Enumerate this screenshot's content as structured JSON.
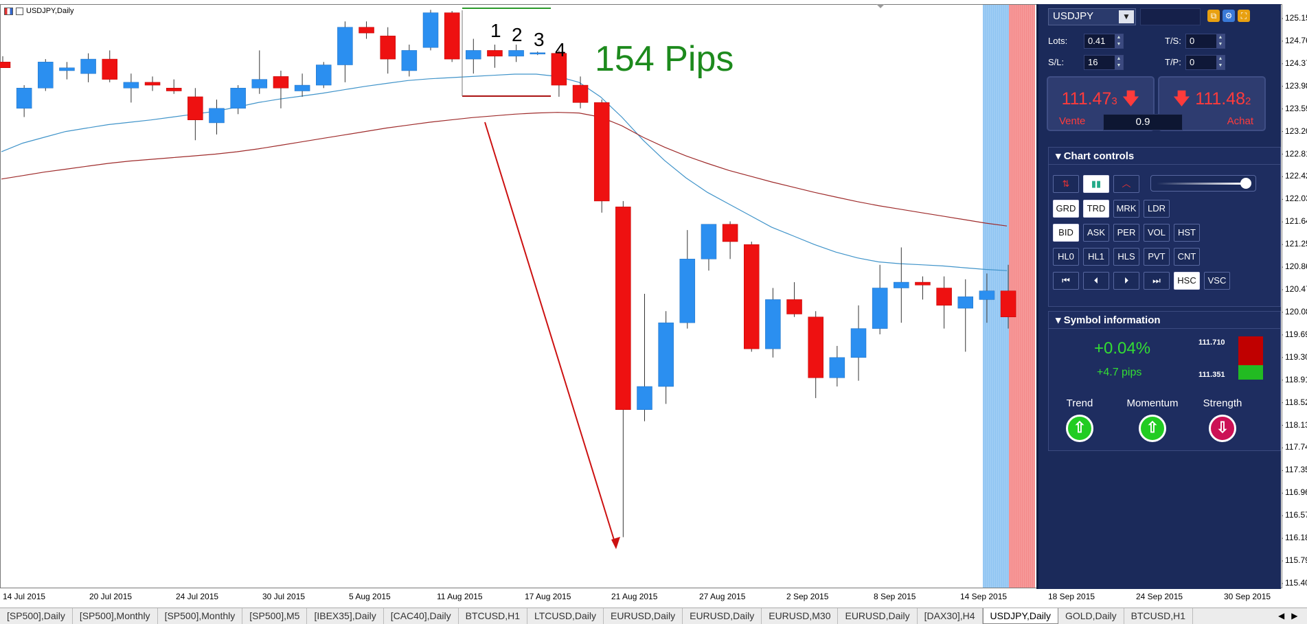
{
  "window": {
    "title": "USDJPY,Daily"
  },
  "price_axis": {
    "labels": [
      "125.150",
      "124.760",
      "124.370",
      "123.980",
      "123.590",
      "123.200",
      "122.810",
      "122.420",
      "122.030",
      "121.640",
      "121.250",
      "120.860",
      "120.470",
      "120.080",
      "119.690",
      "119.300",
      "118.910",
      "118.520",
      "118.130",
      "117.740",
      "117.350",
      "116.960",
      "116.570",
      "116.180",
      "115.790",
      "115.400"
    ],
    "top": 125.15,
    "bottom": 115.4
  },
  "time_axis": {
    "labels": [
      "14 Jul 2015",
      "20 Jul 2015",
      "24 Jul 2015",
      "30 Jul 2015",
      "5 Aug 2015",
      "11 Aug 2015",
      "17 Aug 2015",
      "21 Aug 2015",
      "27 Aug 2015",
      "2 Sep 2015",
      "8 Sep 2015",
      "14 Sep 2015",
      "18 Sep 2015",
      "24 Sep 2015",
      "30 Sep 2015"
    ]
  },
  "chart_data": {
    "type": "candlestick",
    "symbol": "USDJPY",
    "timeframe": "Daily",
    "candles": [
      {
        "o": 124.4,
        "h": 124.5,
        "l": 124.3,
        "c": 124.3
      },
      {
        "o": 123.6,
        "h": 124.0,
        "l": 123.45,
        "c": 123.95
      },
      {
        "o": 123.95,
        "h": 124.45,
        "l": 123.9,
        "c": 124.4
      },
      {
        "o": 124.25,
        "h": 124.4,
        "l": 124.1,
        "c": 124.3
      },
      {
        "o": 124.2,
        "h": 124.55,
        "l": 124.05,
        "c": 124.45
      },
      {
        "o": 124.45,
        "h": 124.6,
        "l": 124.05,
        "c": 124.1
      },
      {
        "o": 123.95,
        "h": 124.2,
        "l": 123.7,
        "c": 124.05
      },
      {
        "o": 124.05,
        "h": 124.15,
        "l": 123.9,
        "c": 124.0
      },
      {
        "o": 123.95,
        "h": 124.1,
        "l": 123.85,
        "c": 123.9
      },
      {
        "o": 123.8,
        "h": 123.95,
        "l": 123.05,
        "c": 123.4
      },
      {
        "o": 123.35,
        "h": 123.75,
        "l": 123.15,
        "c": 123.6
      },
      {
        "o": 123.6,
        "h": 124.0,
        "l": 123.5,
        "c": 123.95
      },
      {
        "o": 123.95,
        "h": 124.6,
        "l": 123.85,
        "c": 124.1
      },
      {
        "o": 124.15,
        "h": 124.25,
        "l": 123.6,
        "c": 123.95
      },
      {
        "o": 123.9,
        "h": 124.2,
        "l": 123.8,
        "c": 124.0
      },
      {
        "o": 124.0,
        "h": 124.4,
        "l": 123.95,
        "c": 124.35
      },
      {
        "o": 124.35,
        "h": 125.1,
        "l": 124.05,
        "c": 125.0
      },
      {
        "o": 125.0,
        "h": 125.1,
        "l": 124.8,
        "c": 124.9
      },
      {
        "o": 124.85,
        "h": 125.0,
        "l": 124.2,
        "c": 124.45
      },
      {
        "o": 124.25,
        "h": 124.7,
        "l": 124.15,
        "c": 124.6
      },
      {
        "o": 124.65,
        "h": 125.3,
        "l": 124.6,
        "c": 125.25
      },
      {
        "o": 125.25,
        "h": 125.28,
        "l": 124.4,
        "c": 124.45
      },
      {
        "o": 124.45,
        "h": 124.8,
        "l": 124.2,
        "c": 124.6
      },
      {
        "o": 124.6,
        "h": 124.7,
        "l": 124.3,
        "c": 124.5
      },
      {
        "o": 124.5,
        "h": 124.7,
        "l": 124.4,
        "c": 124.6
      },
      {
        "o": 124.55,
        "h": 124.58,
        "l": 124.52,
        "c": 124.56
      },
      {
        "o": 124.55,
        "h": 124.6,
        "l": 123.8,
        "c": 124.0
      },
      {
        "o": 124.0,
        "h": 124.15,
        "l": 123.6,
        "c": 123.7
      },
      {
        "o": 123.7,
        "h": 123.75,
        "l": 121.8,
        "c": 122.0
      },
      {
        "o": 121.9,
        "h": 122.0,
        "l": 116.2,
        "c": 118.4
      },
      {
        "o": 118.4,
        "h": 120.4,
        "l": 118.2,
        "c": 118.8
      },
      {
        "o": 118.8,
        "h": 120.1,
        "l": 118.5,
        "c": 119.9
      },
      {
        "o": 119.9,
        "h": 121.5,
        "l": 119.8,
        "c": 121.0
      },
      {
        "o": 121.0,
        "h": 121.6,
        "l": 120.8,
        "c": 121.6
      },
      {
        "o": 121.6,
        "h": 121.65,
        "l": 121.0,
        "c": 121.3
      },
      {
        "o": 121.25,
        "h": 121.3,
        "l": 119.4,
        "c": 119.45
      },
      {
        "o": 119.45,
        "h": 120.5,
        "l": 119.3,
        "c": 120.3
      },
      {
        "o": 120.3,
        "h": 120.6,
        "l": 120.0,
        "c": 120.05
      },
      {
        "o": 120.0,
        "h": 120.1,
        "l": 118.6,
        "c": 118.95
      },
      {
        "o": 118.95,
        "h": 119.5,
        "l": 118.8,
        "c": 119.3
      },
      {
        "o": 119.3,
        "h": 120.2,
        "l": 118.9,
        "c": 119.8
      },
      {
        "o": 119.8,
        "h": 120.9,
        "l": 119.7,
        "c": 120.5
      },
      {
        "o": 120.5,
        "h": 121.2,
        "l": 119.9,
        "c": 120.6
      },
      {
        "o": 120.6,
        "h": 120.7,
        "l": 120.3,
        "c": 120.55
      },
      {
        "o": 120.5,
        "h": 120.7,
        "l": 119.8,
        "c": 120.2
      },
      {
        "o": 120.15,
        "h": 120.65,
        "l": 119.4,
        "c": 120.35
      },
      {
        "o": 120.3,
        "h": 120.75,
        "l": 119.9,
        "c": 120.45
      },
      {
        "o": 120.45,
        "h": 120.9,
        "l": 119.8,
        "c": 120.0
      }
    ],
    "ma_fast": [
      122.85,
      123.0,
      123.1,
      123.2,
      123.26,
      123.32,
      123.36,
      123.4,
      123.45,
      123.5,
      123.55,
      123.62,
      123.7,
      123.76,
      123.81,
      123.86,
      123.92,
      123.98,
      124.03,
      124.08,
      124.11,
      124.13,
      124.15,
      124.17,
      124.19,
      124.19,
      124.15,
      124.05,
      123.8,
      123.45,
      123.05,
      122.7,
      122.4,
      122.15,
      121.95,
      121.75,
      121.55,
      121.4,
      121.25,
      121.12,
      121.02,
      120.95,
      120.92,
      120.9,
      120.88,
      120.85,
      120.82,
      120.8
    ],
    "ma_slow": [
      122.38,
      122.44,
      122.5,
      122.55,
      122.6,
      122.65,
      122.69,
      122.72,
      122.75,
      122.78,
      122.81,
      122.85,
      122.9,
      122.96,
      123.02,
      123.08,
      123.14,
      123.2,
      123.26,
      123.31,
      123.36,
      123.4,
      123.44,
      123.47,
      123.5,
      123.52,
      123.53,
      123.52,
      123.45,
      123.3,
      123.1,
      122.93,
      122.78,
      122.65,
      122.53,
      122.43,
      122.33,
      122.24,
      122.15,
      122.07,
      121.99,
      121.92,
      121.86,
      121.8,
      121.74,
      121.68,
      121.62,
      121.57
    ],
    "annotations": [
      "1",
      "2",
      "3",
      "4",
      "154 Pips"
    ]
  },
  "panel": {
    "symbol": "USDJPY",
    "lots_label": "Lots:",
    "lots_value": "0.41",
    "ts_label": "T/S:",
    "ts_value": "0",
    "sl_label": "S/L:",
    "sl_value": "16",
    "tp_label": "T/P:",
    "tp_value": "0",
    "sell_price_main": "111.47",
    "sell_price_small": "3",
    "buy_price_main": "111.48",
    "buy_price_small": "2",
    "sell_label": "Vente",
    "buy_label": "Achat",
    "spread": "0.9",
    "chart_controls_title": "Chart controls",
    "buttons_row2": [
      "GRD",
      "TRD",
      "MRK",
      "LDR"
    ],
    "buttons_row3": [
      "BID",
      "ASK",
      "PER",
      "VOL",
      "HST"
    ],
    "buttons_row4": [
      "HL0",
      "HL1",
      "HLS",
      "PVT",
      "CNT"
    ],
    "nav_buttons": [
      "⏮",
      "⏴",
      "⏵",
      "⏭"
    ],
    "nav_extra": [
      "HSC",
      "VSC"
    ],
    "symbol_info_title": "Symbol information",
    "change_pct": "+0.04%",
    "change_pips": "+4.7 pips",
    "range_high": "111.710",
    "range_low": "111.351",
    "trend_label": "Trend",
    "momentum_label": "Momentum",
    "strength_label": "Strength",
    "colors": {
      "up": "#2b8ff0",
      "down": "#ee1111",
      "signal_up": "#22cc22",
      "signal_down": "#cc1155"
    }
  },
  "tabs": [
    "[SP500],Daily",
    "[SP500],Monthly",
    "[SP500],Monthly",
    "[SP500],M5",
    "[IBEX35],Daily",
    "[CAC40],Daily",
    "BTCUSD,H1",
    "LTCUSD,Daily",
    "EURUSD,Daily",
    "EURUSD,Daily",
    "EURUSD,M30",
    "EURUSD,Daily",
    "[DAX30],H4",
    "USDJPY,Daily",
    "GOLD,Daily",
    "BTCUSD,H1"
  ],
  "active_tab": "USDJPY,Daily"
}
